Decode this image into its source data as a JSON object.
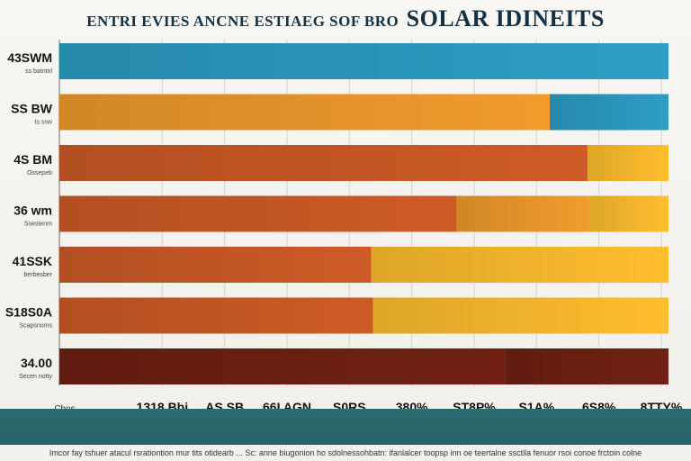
{
  "title": {
    "line1": "ENTRI EVIES ANCNE ESTIAEG SOF BRO",
    "line2": "SOLAR IDINEITS"
  },
  "footer": {
    "text": "Imcor fay tshuer atacul rsrationtion mur tits otidearb ... Sc: anne biugonion ho sdolnessohbatn: ifanlalcer toopsp inn oe teertalne ssctlla fenuor rsoi conoe frctoin colne"
  },
  "colors": {
    "blue": "#2a95ba",
    "orange": "#e3932a",
    "burnt": "#c25624",
    "gold": "#f1b32c",
    "maroon": "#6b1e12"
  },
  "chart_data": {
    "type": "bar",
    "orientation": "horizontal",
    "stacked": true,
    "categories": [
      {
        "label": "43SWM",
        "sub": "ss batntnl"
      },
      {
        "label": "SS BW",
        "sub": "ts ssw"
      },
      {
        "label": "4S BM",
        "sub": "Ossepeb"
      },
      {
        "label": "36 wm",
        "sub": "Ssestenm"
      },
      {
        "label": "41SSK",
        "sub": "berbesber"
      },
      {
        "label": "S18S0A",
        "sub": "Scapsnoms"
      },
      {
        "label": "34.00",
        "sub": "Secen notty"
      }
    ],
    "segments": [
      [
        {
          "value": 100,
          "color": "blue"
        }
      ],
      [
        {
          "value": 80.5,
          "color": "orange"
        },
        {
          "value": 19.5,
          "color": "blue"
        }
      ],
      [
        {
          "value": 86.7,
          "color": "burnt"
        },
        {
          "value": 13.3,
          "color": "gold"
        }
      ],
      [
        {
          "value": 65.2,
          "color": "burnt"
        },
        {
          "value": 21.7,
          "color": "orange"
        },
        {
          "value": 13.1,
          "color": "gold"
        }
      ],
      [
        {
          "value": 51.2,
          "color": "burnt"
        },
        {
          "value": 48.8,
          "color": "gold"
        }
      ],
      [
        {
          "value": 51.5,
          "color": "burnt"
        },
        {
          "value": 48.5,
          "color": "gold"
        }
      ],
      [
        {
          "value": 73.2,
          "color": "maroon"
        },
        {
          "value": 26.8,
          "color": "maroon"
        }
      ]
    ],
    "xticks": [
      "Cbns",
      "1318 Bbj",
      "AS SB",
      "66I AGN",
      "S0RS",
      "380%",
      "ST8P%",
      "S1A%",
      "6S8%",
      "8TTY%"
    ],
    "xlim": [
      0,
      100
    ],
    "grid": true
  }
}
